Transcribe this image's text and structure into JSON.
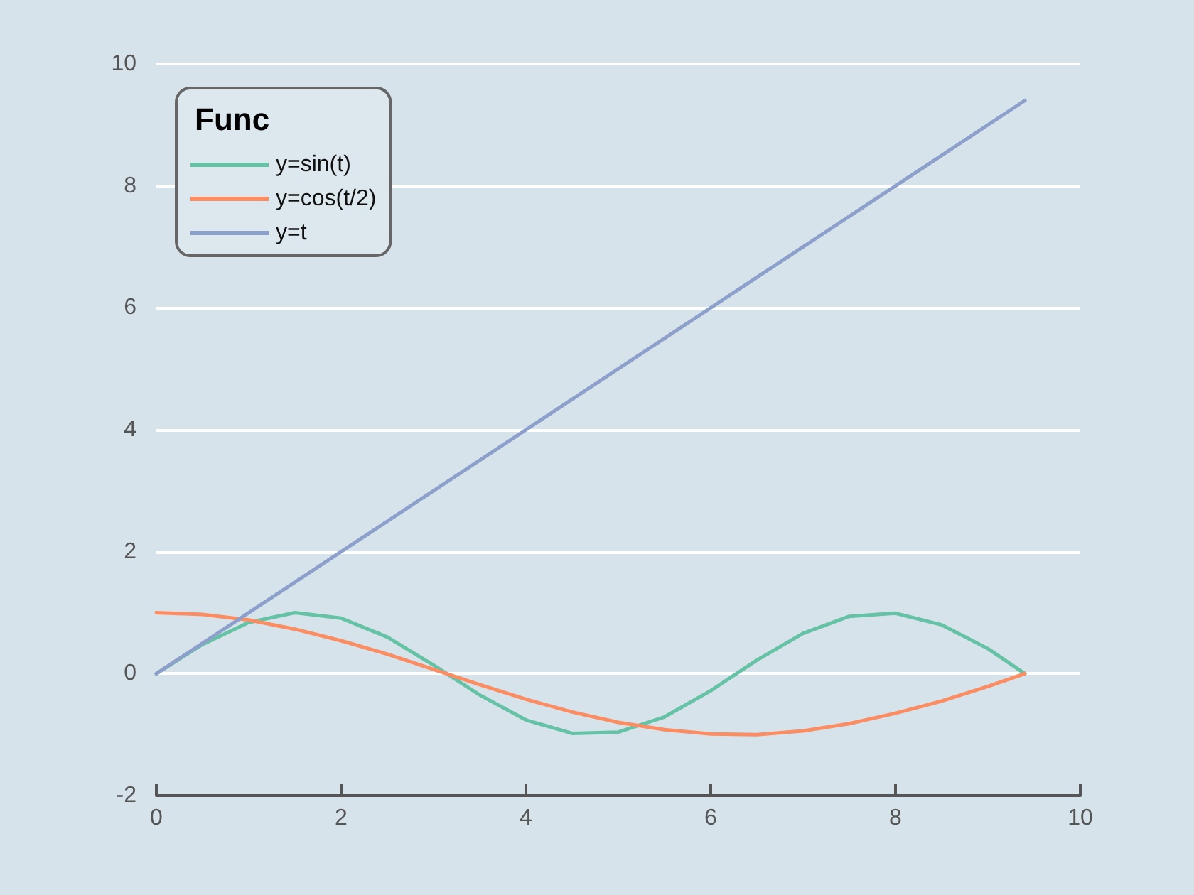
{
  "chart_data": {
    "type": "line",
    "legend_title": "Func",
    "legend": "top left",
    "grid": "y",
    "marker": "none",
    "line_style": "solid",
    "xlim": [
      0,
      10
    ],
    "xticks": [
      0,
      2,
      4,
      6,
      8,
      10
    ],
    "ylim": [
      -2,
      10
    ],
    "yticks": [
      -2,
      0,
      2,
      4,
      6,
      8,
      10
    ],
    "series": [
      {
        "name": "y=sin(t)",
        "color": "#66c2a5",
        "x": [
          0,
          0.5,
          1,
          1.5,
          2,
          2.5,
          3,
          3.5,
          4,
          4.5,
          5,
          5.5,
          6,
          6.5,
          7,
          7.5,
          8,
          8.5,
          9,
          9.4
        ],
        "values": [
          0,
          0.48,
          0.84,
          1,
          0.91,
          0.6,
          0.14,
          -0.35,
          -0.76,
          -0.98,
          -0.96,
          -0.71,
          -0.28,
          0.22,
          0.66,
          0.94,
          0.99,
          0.8,
          0.41,
          0
        ]
      },
      {
        "name": "y=cos(t/2)",
        "color": "#fc8d62",
        "x": [
          0,
          0.5,
          1,
          1.5,
          2,
          2.5,
          3,
          3.5,
          4,
          4.5,
          5,
          5.5,
          6,
          6.5,
          7,
          7.5,
          8,
          8.5,
          9,
          9.4
        ],
        "values": [
          1,
          0.97,
          0.88,
          0.73,
          0.54,
          0.32,
          0.07,
          -0.18,
          -0.42,
          -0.63,
          -0.8,
          -0.92,
          -0.99,
          -1,
          -0.94,
          -0.82,
          -0.65,
          -0.45,
          -0.21,
          0
        ]
      },
      {
        "name": "y=t",
        "color": "#8da0cb",
        "x": [
          0,
          9.4
        ],
        "values": [
          0,
          9.4
        ]
      }
    ]
  }
}
